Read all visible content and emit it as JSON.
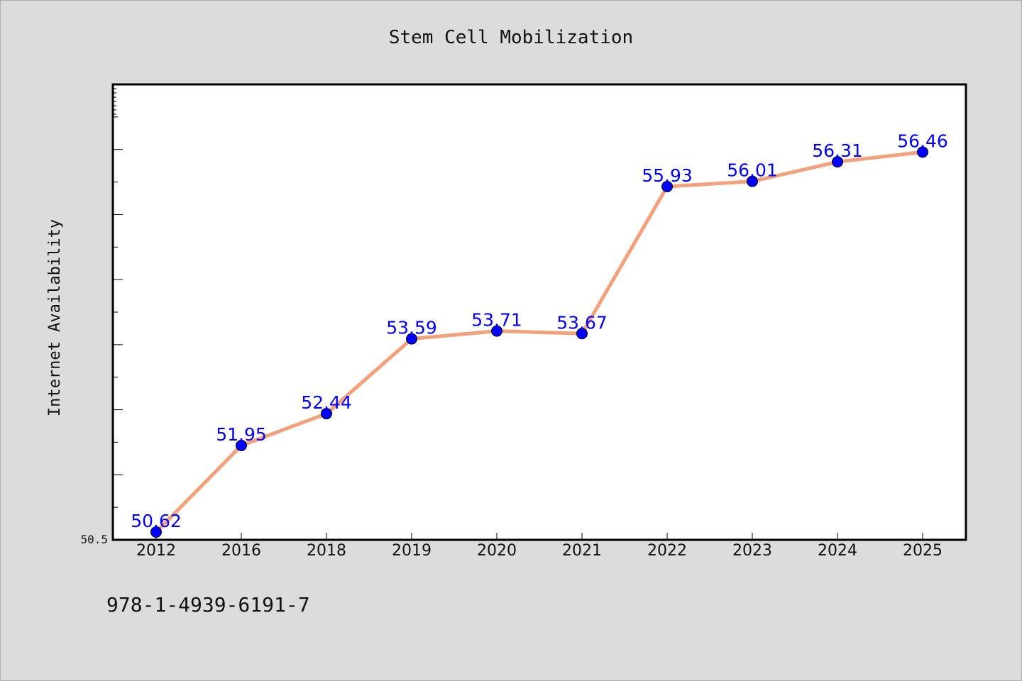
{
  "chart_data": {
    "type": "line",
    "title": "Stem Cell Mobilization",
    "xlabel": "",
    "ylabel": "Internet Availability",
    "categories": [
      "2012",
      "2016",
      "2018",
      "2019",
      "2020",
      "2021",
      "2022",
      "2023",
      "2024",
      "2025"
    ],
    "series": [
      {
        "values": [
          50.62,
          51.95,
          52.44,
          53.59,
          53.71,
          53.67,
          55.93,
          56.01,
          56.31,
          56.46
        ],
        "labels": [
          "50.62",
          "51.95",
          "52.44",
          "53.59",
          "53.71",
          "53.67",
          "55.93",
          "56.01",
          "56.31",
          "56.46"
        ],
        "line_color": "#f4a07a",
        "marker_color": "#0000ff"
      }
    ],
    "ylim": [
      50.5,
      57.5
    ],
    "ytick_label": "50.5",
    "grid": false,
    "legend": "none"
  },
  "footer_text": "978-1-4939-6191-7"
}
